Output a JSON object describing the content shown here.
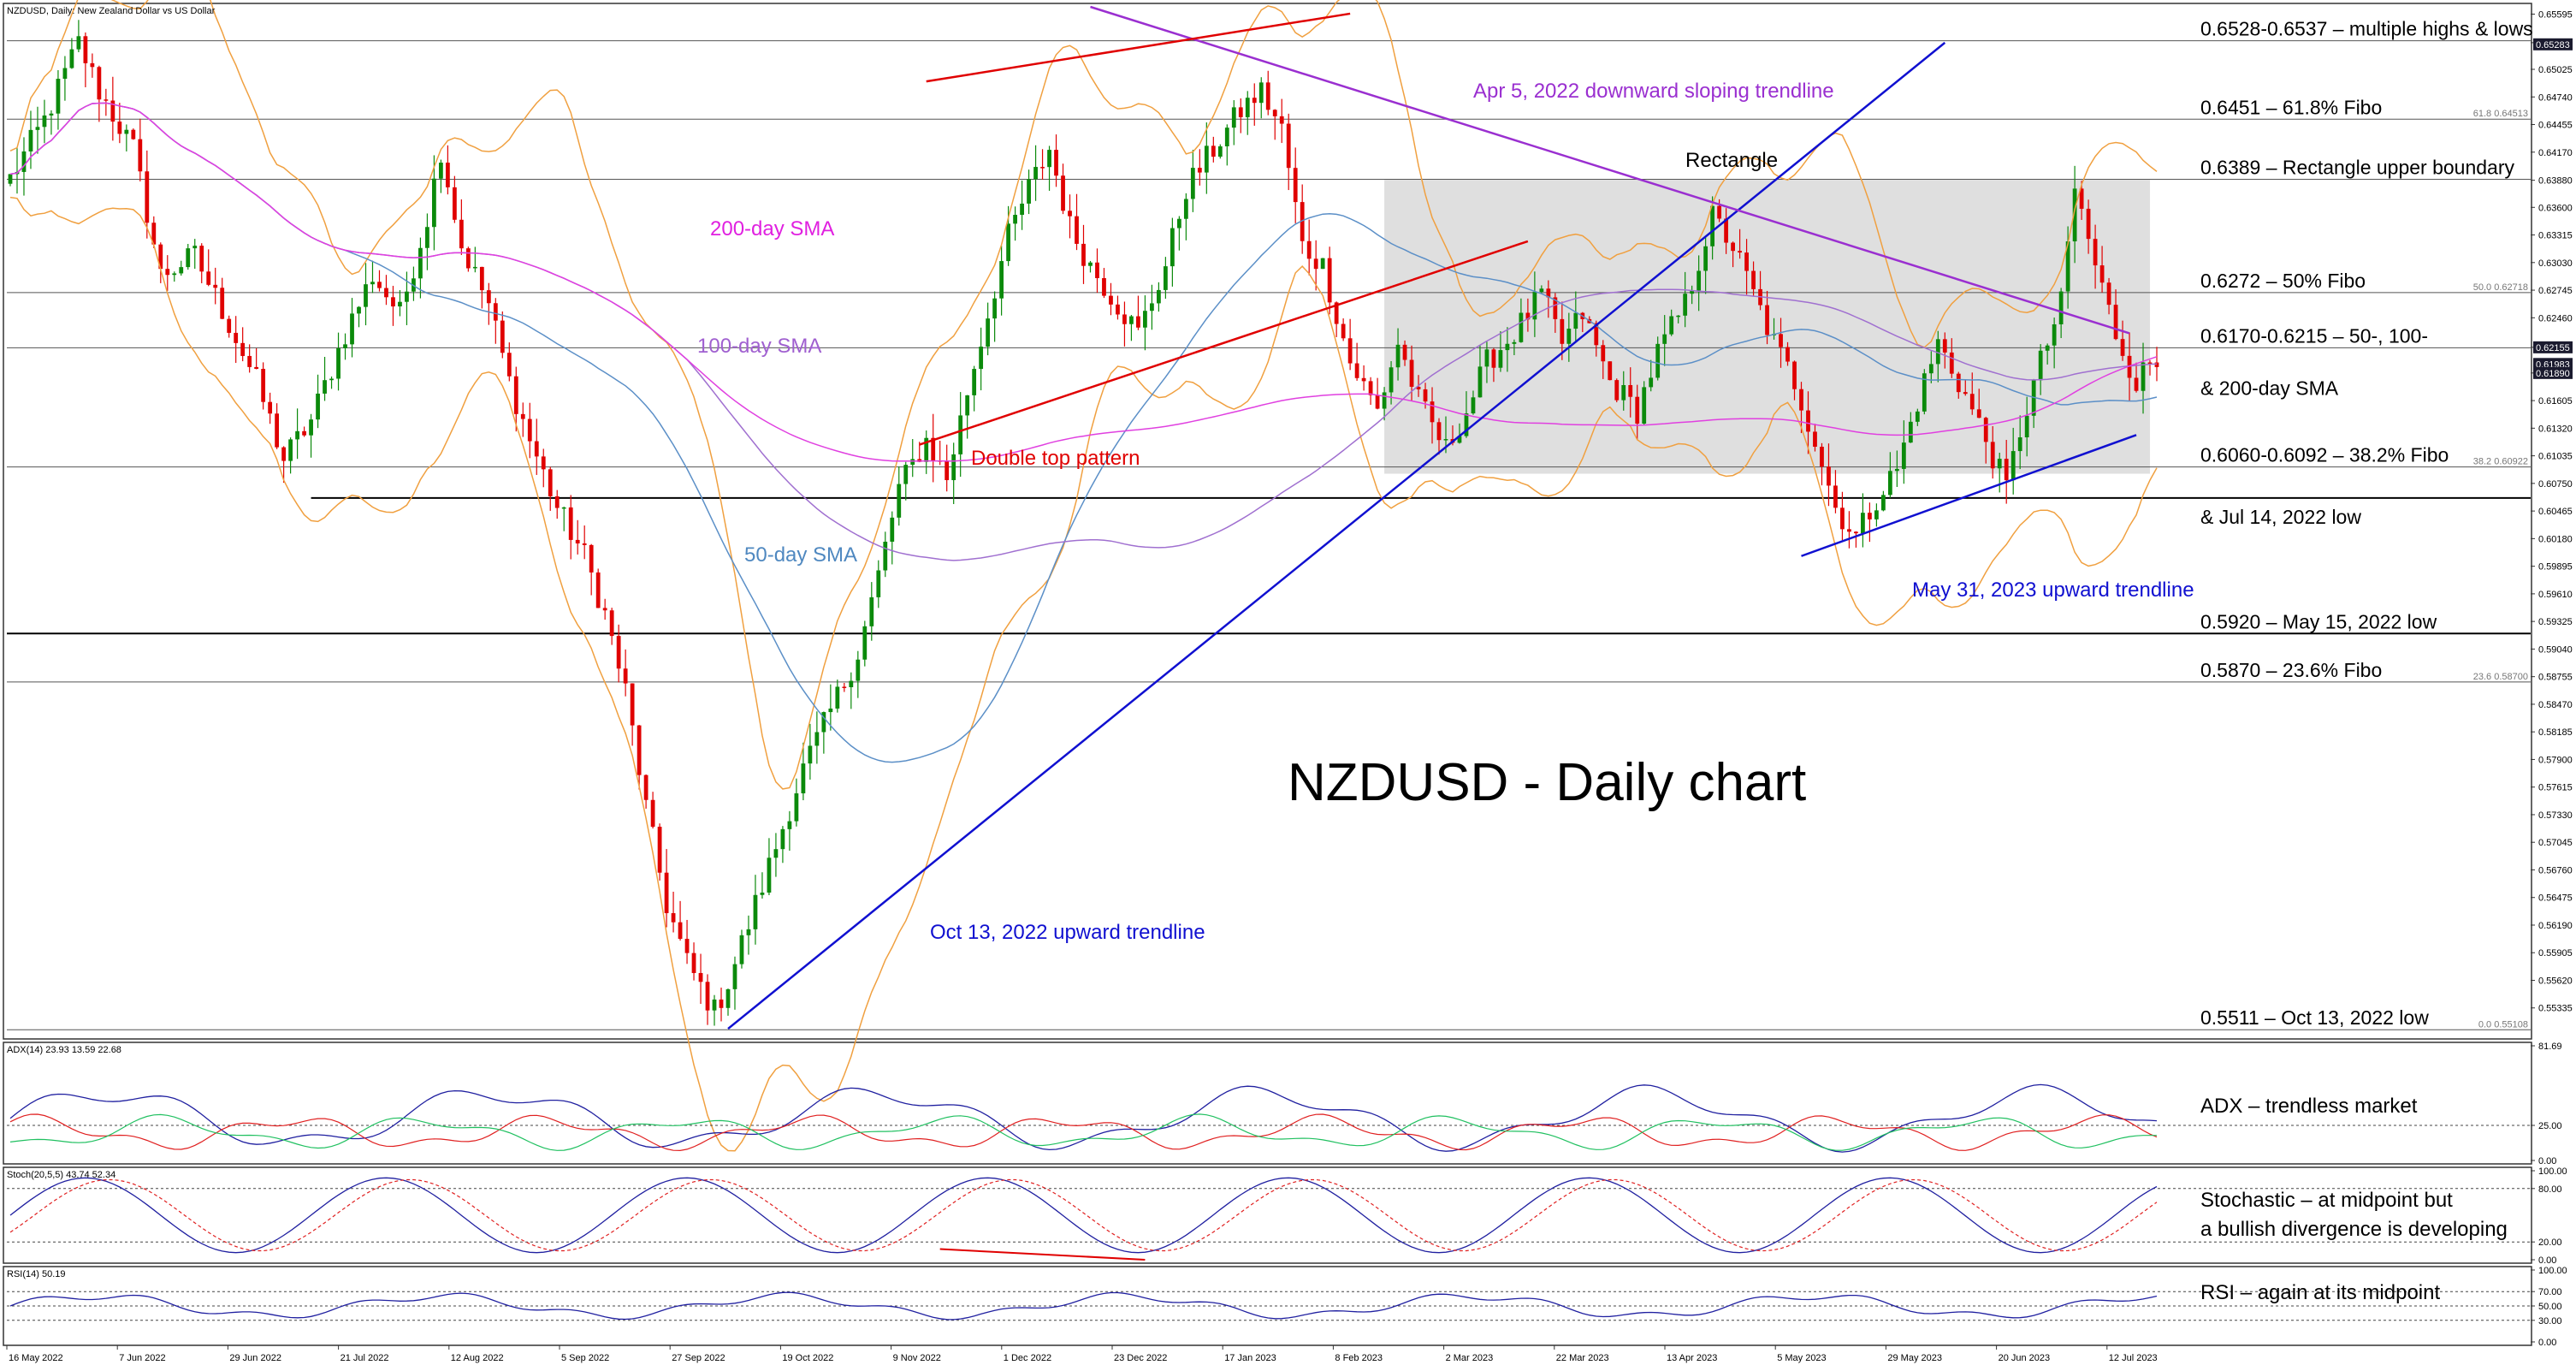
{
  "chart_header": "NZDUSD, Daily:  New Zealand Dollar vs US Dollar",
  "indicator_labels": {
    "adx": "ADX(14) 23.93 13.59 22.68",
    "stoch": "Stoch(20,5,5) 43.74 52.34",
    "rsi": "RSI(14) 50.19"
  },
  "title": "NZDUSD - Daily chart",
  "colors": {
    "bull": "#0b8a0b",
    "bear": "#e00000",
    "sma50": "#5b8fc7",
    "sma100": "#a070d0",
    "sma200": "#e040e0",
    "bollinger": "#f0a040",
    "trend_blue": "#1010d0",
    "trend_purple": "#9a2fd0",
    "trend_red": "#e00000",
    "rectangle_fill": "#d9d9d9"
  },
  "chart_data": {
    "type": "candlestick",
    "title": "NZDUSD - Daily chart",
    "ylim": [
      0.5505,
      0.6567
    ],
    "price_ticks": [
      "0.65595",
      "0.65300",
      "0.65025",
      "0.64740",
      "0.64455",
      "0.64170",
      "0.63880",
      "0.63600",
      "0.63315",
      "0.63030",
      "0.62745",
      "0.62460",
      "0.62155",
      "0.61890",
      "0.61605",
      "0.61320",
      "0.61035",
      "0.60750",
      "0.60465",
      "0.60180",
      "0.59895",
      "0.59610",
      "0.59325",
      "0.59040",
      "0.58755",
      "0.58470",
      "0.58185",
      "0.57900",
      "0.57615",
      "0.57330",
      "0.57045",
      "0.56760",
      "0.56475",
      "0.56190",
      "0.55905",
      "0.55620",
      "0.55335"
    ],
    "price_badges": [
      {
        "label": "0.65283",
        "value": 0.65283
      },
      {
        "label": "0.62155",
        "value": 0.62155
      },
      {
        "label": "0.61983",
        "value": 0.61983
      },
      {
        "label": "0.61890",
        "value": 0.6189
      }
    ],
    "x_ticks": [
      "16 May 2022",
      "7 Jun 2022",
      "29 Jun 2022",
      "21 Jul 2022",
      "12 Aug 2022",
      "5 Sep 2022",
      "27 Sep 2022",
      "19 Oct 2022",
      "9 Nov 2022",
      "1 Dec 2022",
      "23 Dec 2022",
      "17 Jan 2023",
      "8 Feb 2023",
      "2 Mar 2023",
      "22 Mar 2023",
      "13 Apr 2023",
      "5 May 2023",
      "29 May 2023",
      "20 Jun 2023",
      "12 Jul 2023"
    ],
    "path_points": [
      [
        0,
        0.639
      ],
      [
        5,
        0.645
      ],
      [
        10,
        0.653
      ],
      [
        13,
        0.648
      ],
      [
        18,
        0.642
      ],
      [
        22,
        0.629
      ],
      [
        27,
        0.631
      ],
      [
        32,
        0.624
      ],
      [
        36,
        0.618
      ],
      [
        40,
        0.61
      ],
      [
        44,
        0.614
      ],
      [
        49,
        0.623
      ],
      [
        53,
        0.629
      ],
      [
        57,
        0.625
      ],
      [
        61,
        0.635
      ],
      [
        63,
        0.642
      ],
      [
        66,
        0.632
      ],
      [
        70,
        0.626
      ],
      [
        73,
        0.618
      ],
      [
        76,
        0.612
      ],
      [
        80,
        0.605
      ],
      [
        84,
        0.6
      ],
      [
        87,
        0.594
      ],
      [
        90,
        0.586
      ],
      [
        93,
        0.574
      ],
      [
        96,
        0.564
      ],
      [
        99,
        0.558
      ],
      [
        103,
        0.553
      ],
      [
        105,
        0.556
      ],
      [
        108,
        0.562
      ],
      [
        112,
        0.57
      ],
      [
        116,
        0.578
      ],
      [
        120,
        0.584
      ],
      [
        124,
        0.59
      ],
      [
        127,
        0.598
      ],
      [
        130,
        0.607
      ],
      [
        134,
        0.612
      ],
      [
        137,
        0.608
      ],
      [
        140,
        0.617
      ],
      [
        143,
        0.625
      ],
      [
        146,
        0.633
      ],
      [
        149,
        0.638
      ],
      [
        152,
        0.642
      ],
      [
        155,
        0.634
      ],
      [
        158,
        0.63
      ],
      [
        161,
        0.627
      ],
      [
        165,
        0.623
      ],
      [
        169,
        0.63
      ],
      [
        172,
        0.638
      ],
      [
        176,
        0.642
      ],
      [
        180,
        0.646
      ],
      [
        183,
        0.648
      ],
      [
        186,
        0.644
      ],
      [
        189,
        0.632
      ],
      [
        192,
        0.63
      ],
      [
        196,
        0.62
      ],
      [
        200,
        0.615
      ],
      [
        203,
        0.622
      ],
      [
        206,
        0.616
      ],
      [
        210,
        0.611
      ],
      [
        213,
        0.615
      ],
      [
        216,
        0.62
      ],
      [
        220,
        0.623
      ],
      [
        224,
        0.627
      ],
      [
        227,
        0.622
      ],
      [
        230,
        0.625
      ],
      [
        234,
        0.618
      ],
      [
        238,
        0.615
      ],
      [
        241,
        0.621
      ],
      [
        245,
        0.626
      ],
      [
        249,
        0.635
      ],
      [
        252,
        0.632
      ],
      [
        255,
        0.627
      ],
      [
        258,
        0.622
      ],
      [
        261,
        0.618
      ],
      [
        264,
        0.612
      ],
      [
        267,
        0.605
      ],
      [
        270,
        0.602
      ],
      [
        273,
        0.606
      ],
      [
        276,
        0.609
      ],
      [
        279,
        0.616
      ],
      [
        282,
        0.622
      ],
      [
        285,
        0.618
      ],
      [
        289,
        0.612
      ],
      [
        292,
        0.607
      ],
      [
        294,
        0.613
      ],
      [
        297,
        0.62
      ],
      [
        300,
        0.626
      ],
      [
        302,
        0.638
      ],
      [
        305,
        0.63
      ],
      [
        308,
        0.623
      ],
      [
        311,
        0.618
      ],
      [
        313,
        0.62
      ]
    ],
    "overlay_labels": [
      "200-day SMA",
      "100-day SMA",
      "50-day SMA",
      "Double top pattern",
      "Rectangle",
      "Apr 5, 2022 downward sloping trendline",
      "Oct 13, 2022 upward trendline",
      "May 31, 2023 upward trendline"
    ],
    "fibo_labels": [
      {
        "label": "61.8 0.64513",
        "value": 0.64513
      },
      {
        "label": "50.0 0.62718",
        "value": 0.62718
      },
      {
        "label": "38.2 0.60922",
        "value": 0.60922
      },
      {
        "label": "23.6 0.58700",
        "value": 0.587
      },
      {
        "label": "0.0 0.55108",
        "value": 0.55108
      }
    ],
    "levels": [
      {
        "value": 0.6532,
        "label": "0.6528-0.6537 – multiple highs & lows"
      },
      {
        "value": 0.6451,
        "label": "0.6451 – 61.8% Fibo"
      },
      {
        "value": 0.6389,
        "label": "0.6389 – Rectangle upper boundary"
      },
      {
        "value": 0.6272,
        "label": "0.6272 – 50% Fibo"
      },
      {
        "value": 0.6215,
        "label": "0.6170-0.6215 – 50-, 100-"
      },
      {
        "value": 0.6193,
        "label": "& 200-day SMA"
      },
      {
        "value": 0.6092,
        "label": "0.6060-0.6092 – 38.2% Fibo"
      },
      {
        "value": 0.606,
        "label": "& Jul 14, 2022 low"
      },
      {
        "value": 0.592,
        "label": "0.5920 – May 15, 2022 low"
      },
      {
        "value": 0.587,
        "label": "0.5870 – 23.6% Fibo"
      },
      {
        "value": 0.5511,
        "label": "0.5511 – Oct 13, 2022 low"
      }
    ],
    "adx": {
      "ticks": [
        "81.69",
        "25.00",
        "0.00"
      ],
      "ylim": [
        0,
        81.69
      ],
      "level": 25.0,
      "note": "ADX – trendless market"
    },
    "stoch": {
      "ticks": [
        "100.00",
        "80.00",
        "20.00",
        "0.00"
      ],
      "ylim": [
        0,
        100
      ],
      "note": "Stochastic – at midpoint but",
      "note2": "a bullish divergence is developing"
    },
    "rsi": {
      "ticks": [
        "100.00",
        "70.00",
        "50.00",
        "30.00",
        "0.00"
      ],
      "ylim": [
        0,
        100
      ],
      "note": "RSI – again at its midpoint"
    }
  }
}
